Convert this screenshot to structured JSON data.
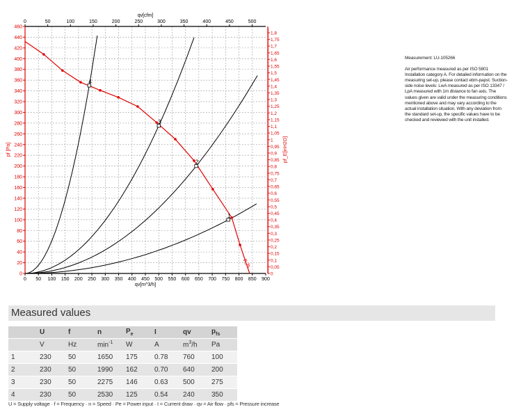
{
  "chart_data": {
    "type": "line",
    "xlabel": "qv[m^3/h]",
    "x2label": "qv[cfm]",
    "ylabel": "pf [Pa]",
    "y2label": "pf_E[inH2O]",
    "xlim": [
      0,
      900
    ],
    "ylim": [
      0,
      460
    ],
    "x2lim_cfm": [
      0,
      530
    ],
    "y2lim_inH2O": [
      0,
      1.847
    ],
    "x_ticks": [
      0,
      50,
      100,
      150,
      200,
      250,
      300,
      350,
      400,
      450,
      500,
      550,
      600,
      650,
      700,
      750,
      800,
      850,
      900
    ],
    "x2_ticks": [
      0,
      50,
      100,
      150,
      200,
      250,
      300,
      350,
      400,
      450,
      500
    ],
    "y_ticks": [
      0,
      20,
      40,
      60,
      80,
      100,
      120,
      140,
      160,
      180,
      200,
      220,
      240,
      260,
      280,
      300,
      320,
      340,
      360,
      380,
      400,
      420,
      440,
      460
    ],
    "y2_ticks": [
      "0",
      "0,05",
      "0,1",
      "0,15",
      "0,2",
      "0,25",
      "0,3",
      "0,35",
      "0,4",
      "0,45",
      "0,5",
      "0,55",
      "0,6",
      "0,65",
      "0,7",
      "0,75",
      "0,8",
      "0,85",
      "0,9",
      "0,95",
      "1",
      "1,05",
      "1,1",
      "1,15",
      "1,2",
      "1,25",
      "1,3",
      "1,35",
      "1,4",
      "1,45",
      "1,5",
      "1,55",
      "1,6",
      "1,65",
      "1,7",
      "1,75",
      "1,8"
    ],
    "grid": true,
    "colors": {
      "fan_curve": "#e00000",
      "system_curves": "#000000",
      "axes_primary": "#e00000"
    },
    "fan_curve": {
      "label": "p_fs",
      "x": [
        0,
        70,
        140,
        208,
        281,
        349,
        421,
        492,
        562,
        632,
        702,
        773,
        804,
        840
      ],
      "y": [
        432,
        408,
        378,
        356,
        341,
        328,
        311,
        281,
        250,
        210,
        157,
        104,
        53,
        0
      ]
    },
    "system_curves": [
      {
        "point": "1",
        "k": 0.000173,
        "xmax": 866
      },
      {
        "point": "2",
        "k": 0.000488,
        "xmax": 869
      },
      {
        "point": "3",
        "k": 0.0011,
        "xmax": 632
      },
      {
        "point": "4",
        "k": 0.006076,
        "xmax": 270
      }
    ],
    "operating_points": [
      {
        "label": "1",
        "x": 760,
        "y": 100
      },
      {
        "label": "2",
        "x": 640,
        "y": 200
      },
      {
        "label": "3",
        "x": 500,
        "y": 275
      },
      {
        "label": "4",
        "x": 240,
        "y": 350
      }
    ]
  },
  "note": {
    "measurement": "Measurement: LU-105266",
    "text": "Air performance measured as per ISO 5801 Installation category A. For detailed information on the measuring set-up, please contact ebm-papst. Suction-side noise levels: LwA measured as per ISO 13347 / LpA measured with 1m distance to fan axis. The values given are valid under the measuring conditions mentioned above and may vary according to the actual installation situation. With any deviation from the standard set-up, the specific values have to be checked and reviewed with the unit installed."
  },
  "measured": {
    "title": "Measured values",
    "headers": [
      "",
      "U",
      "f",
      "n",
      "Pe",
      "I",
      "qv",
      "pfs"
    ],
    "units": [
      "",
      "V",
      "Hz",
      "min-1",
      "W",
      "A",
      "m3/h",
      "Pa"
    ],
    "rows": [
      [
        "1",
        "230",
        "50",
        "1650",
        "175",
        "0.78",
        "760",
        "100"
      ],
      [
        "2",
        "230",
        "50",
        "1990",
        "162",
        "0.70",
        "640",
        "200"
      ],
      [
        "3",
        "230",
        "50",
        "2275",
        "146",
        "0.63",
        "500",
        "275"
      ],
      [
        "4",
        "230",
        "50",
        "2530",
        "125",
        "0.54",
        "240",
        "350"
      ]
    ],
    "legend": "U = Supply voltage · f = Frequency · n = Speed · Pe = Power input · I = Current draw · qv = Air flow · pfs = Pressure increase"
  }
}
